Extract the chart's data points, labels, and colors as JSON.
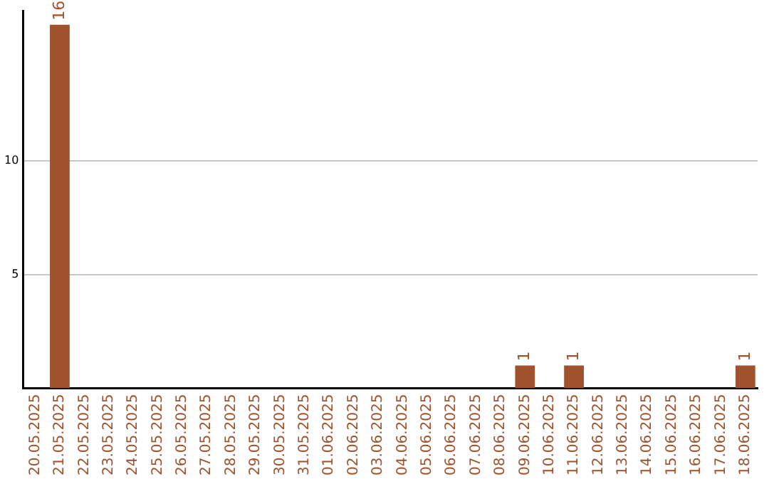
{
  "chart_data": {
    "type": "bar",
    "categories": [
      "20.05.2025",
      "21.05.2025",
      "22.05.2025",
      "23.05.2025",
      "24.05.2025",
      "25.05.2025",
      "26.05.2025",
      "27.05.2025",
      "28.05.2025",
      "29.05.2025",
      "30.05.2025",
      "31.05.2025",
      "01.06.2025",
      "02.06.2025",
      "03.06.2025",
      "04.06.2025",
      "05.06.2025",
      "06.06.2025",
      "07.06.2025",
      "08.06.2025",
      "09.06.2025",
      "10.06.2025",
      "11.06.2025",
      "12.06.2025",
      "13.06.2025",
      "14.06.2025",
      "15.06.2025",
      "16.06.2025",
      "17.06.2025",
      "18.06.2025"
    ],
    "values": [
      0,
      16,
      0,
      0,
      0,
      0,
      0,
      0,
      0,
      0,
      0,
      0,
      0,
      0,
      0,
      0,
      0,
      0,
      0,
      0,
      1,
      0,
      1,
      0,
      0,
      0,
      0,
      0,
      0,
      1
    ],
    "value_labels": [
      null,
      "16",
      null,
      null,
      null,
      null,
      null,
      null,
      null,
      null,
      null,
      null,
      null,
      null,
      null,
      null,
      null,
      null,
      null,
      null,
      "1",
      null,
      "1",
      null,
      null,
      null,
      null,
      null,
      null,
      "1"
    ],
    "color": "#a0522d",
    "ylim": [
      0,
      16.6
    ],
    "yticks": [
      5,
      10
    ],
    "grid": "y",
    "legend": false
  }
}
